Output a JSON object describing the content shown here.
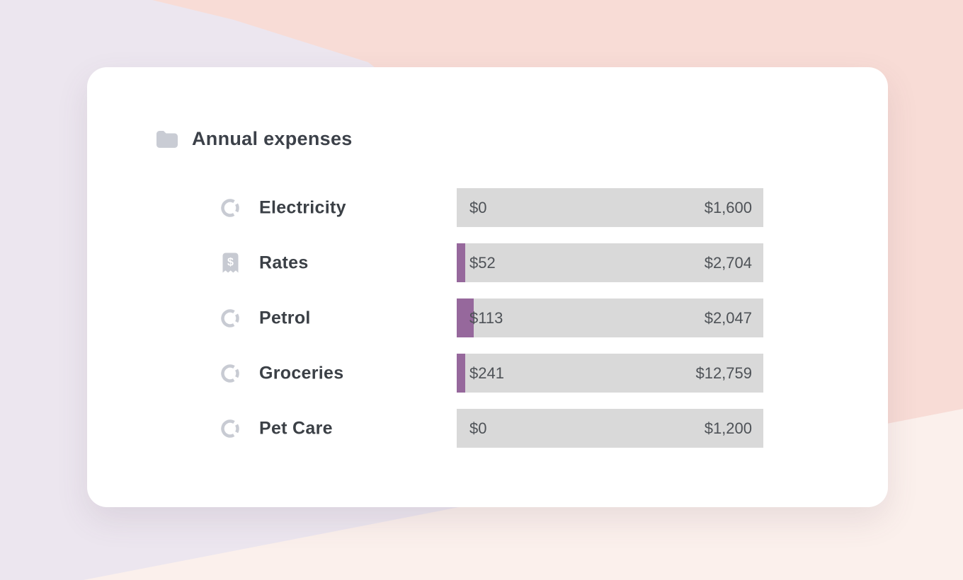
{
  "background_colors": {
    "lavender": "#ECE6EF",
    "pink": "#F8DCD6",
    "cream": "#FBF0EC"
  },
  "card": {
    "header": {
      "icon": "folder-icon",
      "title": "Annual expenses"
    },
    "colors": {
      "bar_background": "#D9D9D9",
      "bar_fill": "#96689C",
      "icon_gray": "#C8CBD3",
      "label_text": "#3B4046",
      "value_text": "#4E5257"
    },
    "rows": [
      {
        "icon": "donut-chart-icon",
        "label": "Electricity",
        "spent": 0,
        "budget": 1600,
        "spent_label": "$0",
        "budget_label": "$1,600"
      },
      {
        "icon": "receipt-dollar-icon",
        "label": "Rates",
        "spent": 52,
        "budget": 2704,
        "spent_label": "$52",
        "budget_label": "$2,704"
      },
      {
        "icon": "donut-chart-icon",
        "label": "Petrol",
        "spent": 113,
        "budget": 2047,
        "spent_label": "$113",
        "budget_label": "$2,047"
      },
      {
        "icon": "donut-chart-icon",
        "label": "Groceries",
        "spent": 241,
        "budget": 12759,
        "spent_label": "$241",
        "budget_label": "$12,759"
      },
      {
        "icon": "donut-chart-icon",
        "label": "Pet Care",
        "spent": 0,
        "budget": 1200,
        "spent_label": "$0",
        "budget_label": "$1,200"
      }
    ]
  }
}
